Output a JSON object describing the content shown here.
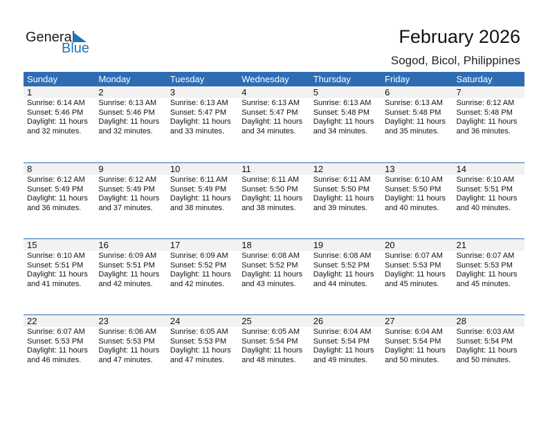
{
  "logo": {
    "text1": "General",
    "text2": "Blue"
  },
  "title": "February 2026",
  "location": "Sogod, Bicol, Philippines",
  "colors": {
    "header": "#2e6db4",
    "date_strip": "#f2f2f2",
    "logo_blue": "#1f73b7"
  },
  "weekdays": [
    "Sunday",
    "Monday",
    "Tuesday",
    "Wednesday",
    "Thursday",
    "Friday",
    "Saturday"
  ],
  "weeks": [
    [
      {
        "day": "1",
        "sunrise": "Sunrise: 6:14 AM",
        "sunset": "Sunset: 5:46 PM",
        "daylight1": "Daylight: 11 hours",
        "daylight2": "and 32 minutes."
      },
      {
        "day": "2",
        "sunrise": "Sunrise: 6:13 AM",
        "sunset": "Sunset: 5:46 PM",
        "daylight1": "Daylight: 11 hours",
        "daylight2": "and 32 minutes."
      },
      {
        "day": "3",
        "sunrise": "Sunrise: 6:13 AM",
        "sunset": "Sunset: 5:47 PM",
        "daylight1": "Daylight: 11 hours",
        "daylight2": "and 33 minutes."
      },
      {
        "day": "4",
        "sunrise": "Sunrise: 6:13 AM",
        "sunset": "Sunset: 5:47 PM",
        "daylight1": "Daylight: 11 hours",
        "daylight2": "and 34 minutes."
      },
      {
        "day": "5",
        "sunrise": "Sunrise: 6:13 AM",
        "sunset": "Sunset: 5:48 PM",
        "daylight1": "Daylight: 11 hours",
        "daylight2": "and 34 minutes."
      },
      {
        "day": "6",
        "sunrise": "Sunrise: 6:13 AM",
        "sunset": "Sunset: 5:48 PM",
        "daylight1": "Daylight: 11 hours",
        "daylight2": "and 35 minutes."
      },
      {
        "day": "7",
        "sunrise": "Sunrise: 6:12 AM",
        "sunset": "Sunset: 5:48 PM",
        "daylight1": "Daylight: 11 hours",
        "daylight2": "and 36 minutes."
      }
    ],
    [
      {
        "day": "8",
        "sunrise": "Sunrise: 6:12 AM",
        "sunset": "Sunset: 5:49 PM",
        "daylight1": "Daylight: 11 hours",
        "daylight2": "and 36 minutes."
      },
      {
        "day": "9",
        "sunrise": "Sunrise: 6:12 AM",
        "sunset": "Sunset: 5:49 PM",
        "daylight1": "Daylight: 11 hours",
        "daylight2": "and 37 minutes."
      },
      {
        "day": "10",
        "sunrise": "Sunrise: 6:11 AM",
        "sunset": "Sunset: 5:49 PM",
        "daylight1": "Daylight: 11 hours",
        "daylight2": "and 38 minutes."
      },
      {
        "day": "11",
        "sunrise": "Sunrise: 6:11 AM",
        "sunset": "Sunset: 5:50 PM",
        "daylight1": "Daylight: 11 hours",
        "daylight2": "and 38 minutes."
      },
      {
        "day": "12",
        "sunrise": "Sunrise: 6:11 AM",
        "sunset": "Sunset: 5:50 PM",
        "daylight1": "Daylight: 11 hours",
        "daylight2": "and 39 minutes."
      },
      {
        "day": "13",
        "sunrise": "Sunrise: 6:10 AM",
        "sunset": "Sunset: 5:50 PM",
        "daylight1": "Daylight: 11 hours",
        "daylight2": "and 40 minutes."
      },
      {
        "day": "14",
        "sunrise": "Sunrise: 6:10 AM",
        "sunset": "Sunset: 5:51 PM",
        "daylight1": "Daylight: 11 hours",
        "daylight2": "and 40 minutes."
      }
    ],
    [
      {
        "day": "15",
        "sunrise": "Sunrise: 6:10 AM",
        "sunset": "Sunset: 5:51 PM",
        "daylight1": "Daylight: 11 hours",
        "daylight2": "and 41 minutes."
      },
      {
        "day": "16",
        "sunrise": "Sunrise: 6:09 AM",
        "sunset": "Sunset: 5:51 PM",
        "daylight1": "Daylight: 11 hours",
        "daylight2": "and 42 minutes."
      },
      {
        "day": "17",
        "sunrise": "Sunrise: 6:09 AM",
        "sunset": "Sunset: 5:52 PM",
        "daylight1": "Daylight: 11 hours",
        "daylight2": "and 42 minutes."
      },
      {
        "day": "18",
        "sunrise": "Sunrise: 6:08 AM",
        "sunset": "Sunset: 5:52 PM",
        "daylight1": "Daylight: 11 hours",
        "daylight2": "and 43 minutes."
      },
      {
        "day": "19",
        "sunrise": "Sunrise: 6:08 AM",
        "sunset": "Sunset: 5:52 PM",
        "daylight1": "Daylight: 11 hours",
        "daylight2": "and 44 minutes."
      },
      {
        "day": "20",
        "sunrise": "Sunrise: 6:07 AM",
        "sunset": "Sunset: 5:53 PM",
        "daylight1": "Daylight: 11 hours",
        "daylight2": "and 45 minutes."
      },
      {
        "day": "21",
        "sunrise": "Sunrise: 6:07 AM",
        "sunset": "Sunset: 5:53 PM",
        "daylight1": "Daylight: 11 hours",
        "daylight2": "and 45 minutes."
      }
    ],
    [
      {
        "day": "22",
        "sunrise": "Sunrise: 6:07 AM",
        "sunset": "Sunset: 5:53 PM",
        "daylight1": "Daylight: 11 hours",
        "daylight2": "and 46 minutes."
      },
      {
        "day": "23",
        "sunrise": "Sunrise: 6:06 AM",
        "sunset": "Sunset: 5:53 PM",
        "daylight1": "Daylight: 11 hours",
        "daylight2": "and 47 minutes."
      },
      {
        "day": "24",
        "sunrise": "Sunrise: 6:05 AM",
        "sunset": "Sunset: 5:53 PM",
        "daylight1": "Daylight: 11 hours",
        "daylight2": "and 47 minutes."
      },
      {
        "day": "25",
        "sunrise": "Sunrise: 6:05 AM",
        "sunset": "Sunset: 5:54 PM",
        "daylight1": "Daylight: 11 hours",
        "daylight2": "and 48 minutes."
      },
      {
        "day": "26",
        "sunrise": "Sunrise: 6:04 AM",
        "sunset": "Sunset: 5:54 PM",
        "daylight1": "Daylight: 11 hours",
        "daylight2": "and 49 minutes."
      },
      {
        "day": "27",
        "sunrise": "Sunrise: 6:04 AM",
        "sunset": "Sunset: 5:54 PM",
        "daylight1": "Daylight: 11 hours",
        "daylight2": "and 50 minutes."
      },
      {
        "day": "28",
        "sunrise": "Sunrise: 6:03 AM",
        "sunset": "Sunset: 5:54 PM",
        "daylight1": "Daylight: 11 hours",
        "daylight2": "and 50 minutes."
      }
    ]
  ]
}
